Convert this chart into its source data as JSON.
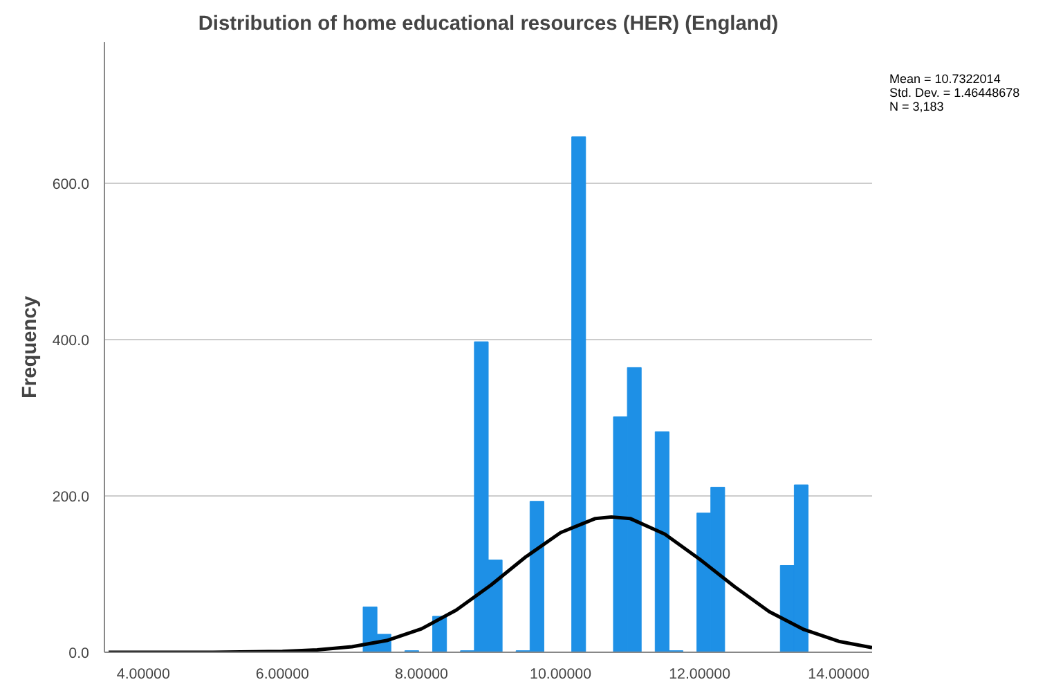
{
  "chart_data": {
    "type": "histogram",
    "title": "Distribution of home educational resources (HER) (England)",
    "ylabel": "Frequency",
    "annotations": [
      "Mean = 10.7322014",
      "Std. Dev. = 1.46448678",
      "N = 3,183"
    ],
    "bins": [
      4.76,
      4.96,
      5.16,
      5.36,
      5.56,
      5.76,
      5.96,
      6.16,
      6.36,
      6.56,
      6.76,
      6.96,
      7.16,
      7.36,
      7.56,
      7.76,
      7.96,
      8.16,
      8.36,
      8.56,
      8.76,
      8.96,
      9.16,
      9.36,
      9.56,
      9.76,
      9.96,
      10.16,
      10.36,
      10.56,
      10.76,
      10.96,
      11.16,
      11.36,
      11.56,
      11.76,
      11.96,
      12.16,
      12.36,
      12.56,
      12.76,
      12.96,
      13.16,
      13.36,
      13.56
    ],
    "values": [
      1,
      0,
      0,
      0,
      0,
      0,
      0,
      0,
      0,
      0,
      0,
      0,
      58,
      23,
      0,
      2,
      0,
      46,
      0,
      2,
      397,
      118,
      0,
      2,
      193,
      0,
      0,
      659,
      0,
      0,
      301,
      364,
      0,
      282,
      2,
      0,
      178,
      211,
      0,
      0,
      0,
      0,
      111,
      214
    ],
    "color": "#1e90e6",
    "series": [
      {
        "type": "line",
        "color": "#000000",
        "x": [
          3.5,
          5,
          6,
          6.5,
          7,
          7.5,
          8,
          8.5,
          9,
          9.5,
          10,
          10.5,
          10.73,
          11,
          11.5,
          12,
          12.5,
          13,
          13.5,
          14,
          14.48
        ],
        "values": [
          0,
          0,
          1,
          3,
          7,
          15,
          30,
          54,
          86,
          122,
          153,
          171,
          173,
          171,
          151,
          119,
          84,
          52,
          29,
          14,
          6
        ]
      }
    ],
    "xlim": [
      3.44,
      14.48
    ],
    "ylim": [
      0,
      780
    ],
    "xticks": [
      {
        "value": 4,
        "label": "4.00000"
      },
      {
        "value": 6,
        "label": "6.00000"
      },
      {
        "value": 8,
        "label": "8.00000"
      },
      {
        "value": 10,
        "label": "10.00000"
      },
      {
        "value": 12,
        "label": "12.00000"
      },
      {
        "value": 14,
        "label": "14.00000"
      }
    ],
    "yticks": [
      {
        "value": 0,
        "label": "0.0"
      },
      {
        "value": 200,
        "label": "200.0"
      },
      {
        "value": 400,
        "label": "400.0"
      },
      {
        "value": 600,
        "label": "600.0"
      }
    ],
    "grid": "y"
  }
}
